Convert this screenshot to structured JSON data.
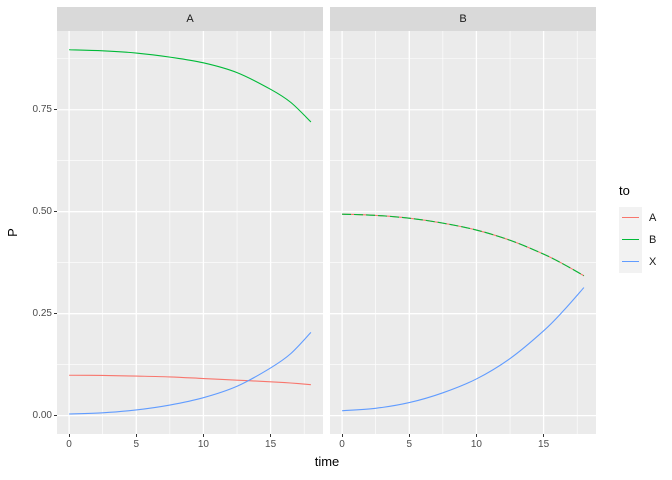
{
  "chart_data": {
    "type": "line",
    "title": "",
    "xlabel": "time",
    "ylabel": "P",
    "x_tick_labels": [
      "0",
      "5",
      "10",
      "15"
    ],
    "x_tick_values": [
      0,
      5,
      10,
      15
    ],
    "x_minor_values": [
      2.5,
      7.5,
      12.5,
      17.5
    ],
    "y_tick_labels": [
      "0.00",
      "0.25",
      "0.50",
      "0.75"
    ],
    "y_tick_values": [
      0,
      0.25,
      0.5,
      0.75
    ],
    "y_minor_values": [
      0.125,
      0.375,
      0.625,
      0.875
    ],
    "x_range": [
      -0.9,
      18.9
    ],
    "y_range": [
      -0.045,
      0.943
    ],
    "grid": true,
    "x": [
      0,
      2.5,
      5,
      7.5,
      10,
      12.5,
      15,
      16.5,
      18
    ],
    "facets": [
      {
        "label": "A",
        "series": [
          {
            "name": "A",
            "color": "#F8766D",
            "dash": "",
            "y": [
              0.099,
              0.0985,
              0.097,
              0.095,
              0.091,
              0.087,
              0.083,
              0.08,
              0.076
            ]
          },
          {
            "name": "B",
            "color": "#00BA38",
            "dash": "",
            "y": [
              0.897,
              0.8945,
              0.889,
              0.879,
              0.865,
              0.841,
              0.8,
              0.768,
              0.72
            ]
          },
          {
            "name": "X",
            "color": "#619CFF",
            "dash": "",
            "y": [
              0.004,
              0.007,
              0.014,
              0.026,
              0.044,
              0.072,
              0.117,
              0.152,
              0.204
            ]
          }
        ]
      },
      {
        "label": "B",
        "series": [
          {
            "name": "A",
            "color": "#F8766D",
            "dash": "",
            "y": [
              0.494,
              0.491,
              0.484,
              0.472,
              0.455,
              0.43,
              0.396,
              0.371,
              0.343
            ]
          },
          {
            "name": "B",
            "color": "#00BA38",
            "dash": "9 3",
            "y": [
              0.494,
              0.491,
              0.484,
              0.472,
              0.455,
              0.43,
              0.396,
              0.371,
              0.343
            ]
          },
          {
            "name": "X",
            "color": "#619CFF",
            "dash": "",
            "y": [
              0.012,
              0.018,
              0.032,
              0.056,
              0.09,
              0.14,
              0.208,
              0.258,
              0.314
            ]
          }
        ]
      }
    ],
    "legend": {
      "title": "to",
      "position": "right",
      "items": [
        {
          "label": "A",
          "color": "#F8766D"
        },
        {
          "label": "B",
          "color": "#00BA38"
        },
        {
          "label": "X",
          "color": "#619CFF"
        }
      ]
    },
    "colors": {
      "panel_bg": "#EBEBEB",
      "strip_bg": "#D9D9D9",
      "grid": "#FFFFFF",
      "axis_text": "#4D4D4D",
      "tick_mark": "#333333"
    }
  }
}
